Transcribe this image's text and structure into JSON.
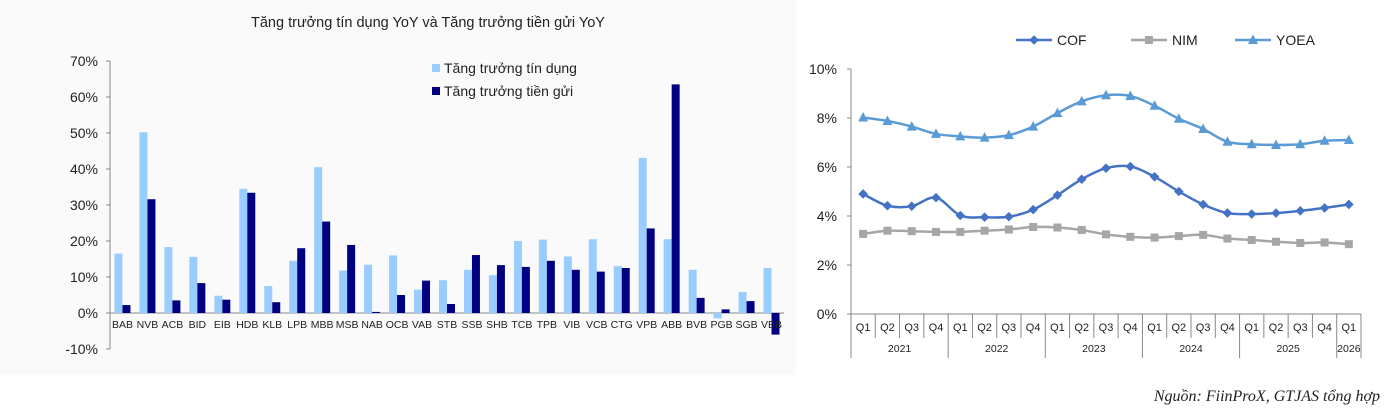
{
  "source_note": "Nguồn: FiinProX, GTJAS tổng hợp",
  "colors": {
    "credit": "#99ccff",
    "deposit": "#000080",
    "cof": "#4472c4",
    "nim": "#a6a6a6",
    "yoea": "#5b9bd5",
    "axis": "#888888",
    "text": "#222222"
  },
  "chart_data": [
    {
      "type": "bar",
      "title": "Tăng trưởng tín dụng YoY và Tăng trưởng tiền gửi YoY",
      "xlabel": "",
      "ylabel": "",
      "ylim": [
        -10,
        70
      ],
      "y_ticks": [
        "70%",
        "60%",
        "50%",
        "40%",
        "30%",
        "20%",
        "10%",
        "0%",
        "-10%"
      ],
      "grid": false,
      "legend_position": "top-right",
      "categories": [
        "BAB",
        "NVB",
        "ACB",
        "BID",
        "EIB",
        "HDB",
        "KLB",
        "LPB",
        "MBB",
        "MSB",
        "NAB",
        "OCB",
        "VAB",
        "STB",
        "SSB",
        "SHB",
        "TCB",
        "TPB",
        "VIB",
        "VCB",
        "CTG",
        "VPB",
        "ABB",
        "BVB",
        "PGB",
        "SGB",
        "VBB"
      ],
      "series": [
        {
          "name": "Tăng trưởng tín dụng",
          "values": [
            16.5,
            50.2,
            18.3,
            15.6,
            4.8,
            34.5,
            7.5,
            14.5,
            40.5,
            11.8,
            13.4,
            16.0,
            6.5,
            9.1,
            12.0,
            10.5,
            20.0,
            20.4,
            15.7,
            20.5,
            13.0,
            43.1,
            20.5,
            12.0,
            -1.5,
            5.8,
            12.5
          ]
        },
        {
          "name": "Tăng trưởng tiền gửi",
          "values": [
            2.2,
            31.6,
            3.5,
            8.3,
            3.7,
            33.4,
            3.0,
            18.0,
            25.4,
            18.9,
            0.3,
            5.0,
            9.0,
            2.5,
            16.1,
            13.3,
            12.8,
            14.5,
            12.0,
            11.5,
            12.5,
            23.5,
            63.5,
            4.2,
            1.0,
            3.3,
            -6.0
          ]
        }
      ]
    },
    {
      "type": "line",
      "title": "",
      "xlabel": "",
      "ylabel": "",
      "ylim": [
        0,
        10
      ],
      "y_ticks": [
        "10%",
        "8%",
        "6%",
        "4%",
        "2%",
        "0%"
      ],
      "grid": false,
      "legend_position": "top",
      "x": [
        "Q1",
        "Q2",
        "Q3",
        "Q4",
        "Q1",
        "Q2",
        "Q3",
        "Q4",
        "Q1",
        "Q2",
        "Q3",
        "Q4",
        "Q1",
        "Q2",
        "Q3",
        "Q4",
        "Q1",
        "Q2",
        "Q3",
        "Q4",
        "Q1"
      ],
      "year_groups": [
        {
          "label": "2021",
          "count": 4
        },
        {
          "label": "2022",
          "count": 4
        },
        {
          "label": "2023",
          "count": 4
        },
        {
          "label": "2024",
          "count": 4
        },
        {
          "label": "2025",
          "count": 4
        },
        {
          "label": "2026",
          "count": 1
        }
      ],
      "series": [
        {
          "name": "COF",
          "marker": "diamond",
          "values": [
            4.9,
            4.42,
            4.4,
            4.75,
            4.02,
            3.95,
            3.97,
            4.26,
            4.85,
            5.5,
            5.95,
            6.02,
            5.6,
            5.0,
            4.47,
            4.12,
            4.08,
            4.12,
            4.21,
            4.33,
            4.47
          ]
        },
        {
          "name": "NIM",
          "marker": "square",
          "values": [
            3.27,
            3.4,
            3.38,
            3.35,
            3.35,
            3.4,
            3.45,
            3.55,
            3.53,
            3.43,
            3.25,
            3.15,
            3.12,
            3.18,
            3.23,
            3.08,
            3.02,
            2.95,
            2.9,
            2.92,
            2.85
          ]
        },
        {
          "name": "YOEA",
          "marker": "triangle",
          "values": [
            8.02,
            7.88,
            7.65,
            7.35,
            7.25,
            7.2,
            7.3,
            7.65,
            8.2,
            8.68,
            8.93,
            8.9,
            8.5,
            7.97,
            7.55,
            7.03,
            6.93,
            6.9,
            6.93,
            7.07,
            7.1
          ]
        }
      ]
    }
  ]
}
